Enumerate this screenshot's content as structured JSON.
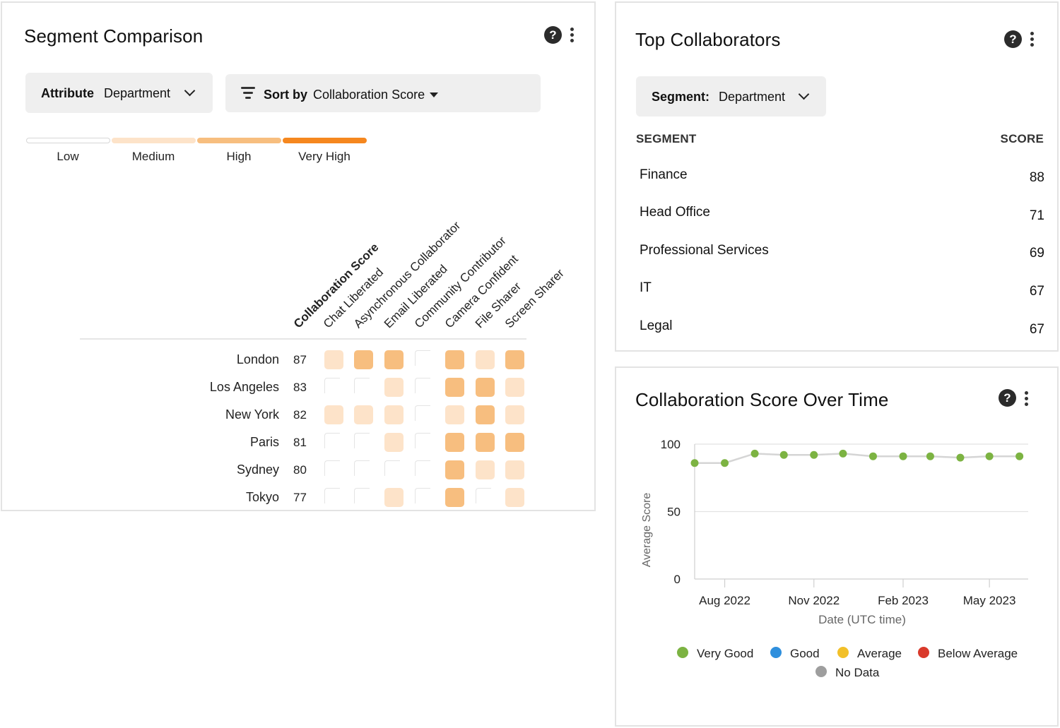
{
  "segment_comparison": {
    "title": "Segment Comparison",
    "attribute": {
      "label": "Attribute",
      "value": "Department"
    },
    "sort": {
      "label": "Sort by",
      "value": "Collaboration Score"
    },
    "legend": [
      {
        "label": "Low",
        "color": "#ffffff"
      },
      {
        "label": "Medium",
        "color": "#fde3c9"
      },
      {
        "label": "High",
        "color": "#f7be7f"
      },
      {
        "label": "Very High",
        "color": "#f5871f"
      }
    ],
    "columns": [
      "Collaboration Score",
      "Chat Liberated",
      "Asynchronous Collaborator",
      "Email Liberated",
      "Community Contributor",
      "Camera Confident",
      "File Sharer",
      "Screen Sharer"
    ],
    "rows": [
      {
        "name": "London",
        "score": "87",
        "levels": [
          1,
          2,
          2,
          0,
          2,
          1,
          2
        ]
      },
      {
        "name": "Los Angeles",
        "score": "83",
        "levels": [
          0,
          0,
          1,
          0,
          2,
          2,
          1
        ]
      },
      {
        "name": "New York",
        "score": "82",
        "levels": [
          1,
          1,
          1,
          0,
          1,
          2,
          1
        ]
      },
      {
        "name": "Paris",
        "score": "81",
        "levels": [
          0,
          0,
          1,
          0,
          2,
          2,
          2
        ]
      },
      {
        "name": "Sydney",
        "score": "80",
        "levels": [
          0,
          0,
          0,
          0,
          2,
          1,
          1
        ]
      },
      {
        "name": "Tokyo",
        "score": "77",
        "levels": [
          0,
          0,
          1,
          0,
          2,
          0,
          1
        ]
      }
    ]
  },
  "top_collaborators": {
    "title": "Top Collaborators",
    "segment": {
      "label": "Segment:",
      "value": "Department"
    },
    "headers": {
      "segment": "SEGMENT",
      "score": "SCORE"
    },
    "rows": [
      {
        "name": "Finance",
        "score": "88"
      },
      {
        "name": "Head Office",
        "score": "71"
      },
      {
        "name": "Professional Services",
        "score": "69"
      },
      {
        "name": "IT",
        "score": "67"
      },
      {
        "name": "Legal",
        "score": "67"
      }
    ]
  },
  "score_over_time": {
    "title": "Collaboration Score Over Time",
    "legend": [
      {
        "label": "Very Good",
        "color": "#7cb342"
      },
      {
        "label": "Good",
        "color": "#2f8fdd"
      },
      {
        "label": "Average",
        "color": "#f2c029"
      },
      {
        "label": "Below Average",
        "color": "#d93a2b"
      },
      {
        "label": "No Data",
        "color": "#9e9e9e"
      }
    ]
  },
  "chart_data": {
    "type": "line",
    "title": "Collaboration Score Over Time",
    "xlabel": "Date (UTC time)",
    "ylabel": "Average Score",
    "ylim": [
      0,
      100
    ],
    "yticks": [
      0,
      50,
      100
    ],
    "xticks": [
      "2022-08-01",
      "2022-11-01",
      "2023-02-01",
      "2023-05-01"
    ],
    "xtick_labels": [
      "Aug 2022",
      "Nov 2022",
      "Feb 2023",
      "May 2023"
    ],
    "xlim": [
      "2022-07-01",
      "2023-06-10"
    ],
    "grid": true,
    "series": [
      {
        "name": "Very Good",
        "color": "#7cb342",
        "x": [
          "2022-07-01",
          "2022-08-01",
          "2022-09-01",
          "2022-10-01",
          "2022-11-01",
          "2022-12-01",
          "2023-01-01",
          "2023-02-01",
          "2023-03-01",
          "2023-04-01",
          "2023-05-01",
          "2023-06-01"
        ],
        "y": [
          86,
          86,
          93,
          92,
          92,
          93,
          91,
          91,
          91,
          90,
          91,
          91
        ]
      }
    ]
  }
}
